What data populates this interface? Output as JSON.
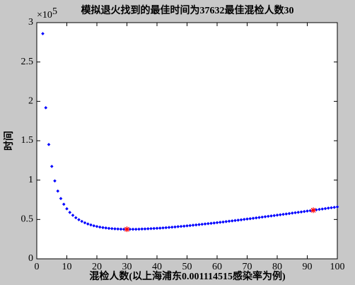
{
  "chart_data": {
    "type": "scatter",
    "title": "模拟退火找到的最佳时间为37632最佳混检人数30",
    "x_label": "混检人数(以上海浦东0.001114515感染率为例)",
    "y_label": "时间",
    "y_scale_base": "×10",
    "y_scale_exponent": "5",
    "xlim": [
      0,
      100
    ],
    "xticks": [
      0,
      10,
      20,
      30,
      40,
      50,
      60,
      70,
      80,
      90,
      100
    ],
    "ylim": [
      0,
      3
    ],
    "yticks": [
      0,
      0.5,
      1,
      1.5,
      2,
      2.5,
      3
    ],
    "grid": false,
    "series": [
      {
        "color": "#0000ff",
        "marker": "dot",
        "x": [
          2,
          3,
          4,
          5,
          6,
          7,
          8,
          9,
          10,
          11,
          12,
          13,
          14,
          15,
          16,
          17,
          18,
          19,
          20,
          21,
          22,
          23,
          24,
          25,
          26,
          27,
          28,
          29,
          30,
          31,
          32,
          33,
          34,
          35,
          36,
          37,
          38,
          39,
          40,
          41,
          42,
          43,
          44,
          45,
          46,
          47,
          48,
          49,
          50,
          51,
          52,
          53,
          54,
          55,
          56,
          57,
          58,
          59,
          60,
          61,
          62,
          63,
          64,
          65,
          66,
          67,
          68,
          69,
          70,
          71,
          72,
          73,
          74,
          75,
          76,
          77,
          78,
          79,
          80,
          81,
          82,
          83,
          84,
          85,
          86,
          87,
          88,
          89,
          90,
          91,
          92,
          93,
          94,
          95,
          96,
          97,
          98,
          99,
          100
        ],
        "values": [
          2.86,
          1.919,
          1.452,
          1.174,
          0.99,
          0.861,
          0.766,
          0.693,
          0.636,
          0.59,
          0.553,
          0.522,
          0.497,
          0.476,
          0.458,
          0.443,
          0.431,
          0.42,
          0.411,
          0.403,
          0.397,
          0.392,
          0.387,
          0.384,
          0.381,
          0.379,
          0.377,
          0.376,
          0.376,
          0.376,
          0.376,
          0.376,
          0.377,
          0.379,
          0.38,
          0.382,
          0.384,
          0.386,
          0.388,
          0.39,
          0.393,
          0.396,
          0.399,
          0.402,
          0.405,
          0.409,
          0.412,
          0.415,
          0.419,
          0.423,
          0.427,
          0.431,
          0.435,
          0.439,
          0.443,
          0.447,
          0.451,
          0.455,
          0.46,
          0.464,
          0.468,
          0.473,
          0.478,
          0.482,
          0.487,
          0.491,
          0.496,
          0.501,
          0.506,
          0.51,
          0.515,
          0.52,
          0.525,
          0.53,
          0.535,
          0.54,
          0.545,
          0.55,
          0.555,
          0.56,
          0.565,
          0.57,
          0.575,
          0.581,
          0.586,
          0.591,
          0.596,
          0.601,
          0.607,
          0.612,
          0.617,
          0.622,
          0.628,
          0.633,
          0.638,
          0.644,
          0.649,
          0.654,
          0.66
        ]
      },
      {
        "color": "#ff0000",
        "marker": "star",
        "x": [
          30,
          92
        ],
        "values": [
          0.376,
          0.617
        ]
      }
    ]
  }
}
